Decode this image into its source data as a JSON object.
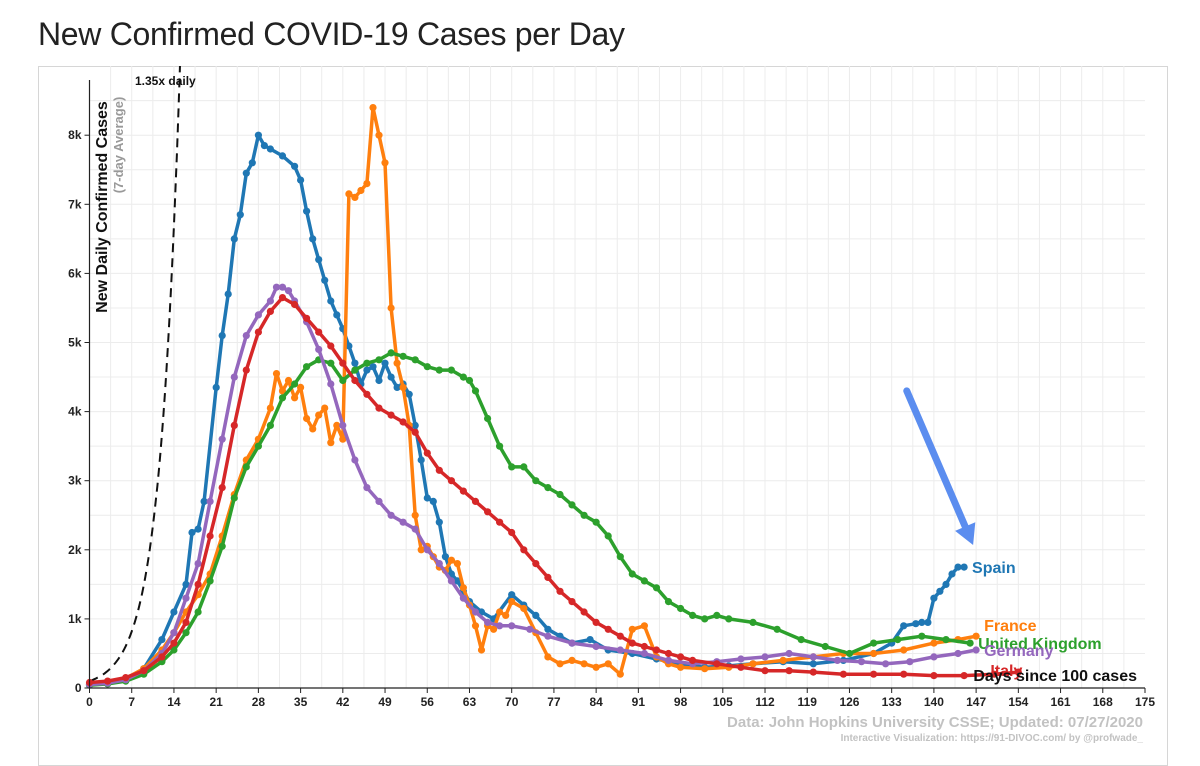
{
  "page": {
    "title": "New Confirmed COVID-19 Cases per Day"
  },
  "chart_data": {
    "type": "line",
    "title": "New Confirmed COVID-19 Cases per Day",
    "ylabel": "New Daily Confirmed Cases",
    "ylabel_sub": "(7-day Average)",
    "xlabel": "Days since 100 cases",
    "xlim": [
      0,
      175
    ],
    "ylim": [
      0,
      8800
    ],
    "x_ticks": [
      0,
      7,
      14,
      21,
      28,
      35,
      42,
      49,
      56,
      63,
      70,
      77,
      84,
      91,
      98,
      105,
      112,
      119,
      126,
      133,
      140,
      147,
      154,
      161,
      168,
      175
    ],
    "y_ticks": [
      0,
      1000,
      2000,
      3000,
      4000,
      5000,
      6000,
      7000,
      8000
    ],
    "y_tick_labels": [
      "0",
      "1k",
      "2k",
      "3k",
      "4k",
      "5k",
      "6k",
      "7k",
      "8k"
    ],
    "grid": true,
    "source_note": "Data: John Hopkins University CSSE; Updated: 07/27/2020",
    "credit_note": "Interactive Visualization: https://91-DIVOC.com/ by @profwade_",
    "reference_line": {
      "label": "1.35x daily",
      "growth": 1.35,
      "start": [
        0,
        100
      ],
      "color": "#111111"
    },
    "annotation_arrow": {
      "from": [
        135.5,
        4300
      ],
      "to": [
        146.5,
        2070
      ],
      "color": "#5b8def"
    },
    "series": [
      {
        "name": "Spain",
        "color": "#1f77b4",
        "x": [
          0,
          3,
          6,
          9,
          12,
          14,
          16,
          17,
          18,
          19,
          21,
          22,
          23,
          24,
          25,
          26,
          27,
          28,
          29,
          30,
          32,
          34,
          35,
          36,
          37,
          38,
          39,
          40,
          41,
          42,
          43,
          44,
          45,
          46,
          47,
          48,
          49,
          50,
          51,
          52,
          53,
          54,
          55,
          56,
          57,
          58,
          59,
          60,
          61,
          62,
          63,
          65,
          67,
          70,
          72,
          74,
          76,
          78,
          80,
          83,
          86,
          90,
          94,
          98,
          102,
          106,
          110,
          115,
          120,
          125,
          130,
          133,
          135,
          137,
          138,
          139,
          140,
          141,
          142,
          143,
          144,
          145
        ],
        "y": [
          50,
          70,
          130,
          280,
          700,
          1100,
          1500,
          2250,
          2300,
          2700,
          4350,
          5100,
          5700,
          6500,
          6850,
          7450,
          7600,
          8000,
          7850,
          7800,
          7700,
          7550,
          7350,
          6900,
          6500,
          6200,
          5900,
          5600,
          5400,
          5200,
          4950,
          4700,
          4400,
          4600,
          4650,
          4450,
          4700,
          4500,
          4350,
          4400,
          4250,
          3800,
          3300,
          2750,
          2700,
          2400,
          1900,
          1650,
          1550,
          1400,
          1250,
          1100,
          1000,
          1350,
          1200,
          1050,
          850,
          750,
          650,
          700,
          550,
          500,
          420,
          350,
          300,
          320,
          350,
          380,
          350,
          400,
          500,
          650,
          900,
          930,
          950,
          950,
          1300,
          1400,
          1500,
          1650,
          1750,
          1750
        ]
      },
      {
        "name": "France",
        "color": "#ff7f0e",
        "x": [
          0,
          3,
          6,
          9,
          12,
          14,
          16,
          18,
          20,
          22,
          24,
          26,
          28,
          30,
          31,
          32,
          33,
          34,
          35,
          36,
          37,
          38,
          39,
          40,
          41,
          42,
          43,
          44,
          45,
          46,
          47,
          48,
          49,
          50,
          51,
          52,
          53,
          54,
          55,
          56,
          57,
          58,
          59,
          60,
          61,
          62,
          63,
          64,
          65,
          66,
          67,
          68,
          69,
          70,
          72,
          74,
          76,
          78,
          80,
          82,
          84,
          86,
          88,
          90,
          92,
          94,
          96,
          98,
          102,
          106,
          110,
          115,
          120,
          125,
          130,
          135,
          140,
          144,
          147
        ],
        "y": [
          60,
          80,
          140,
          280,
          550,
          800,
          1100,
          1350,
          1650,
          2200,
          2800,
          3300,
          3600,
          4050,
          4550,
          4300,
          4450,
          4200,
          4350,
          3900,
          3750,
          3950,
          4050,
          3550,
          3800,
          3600,
          7150,
          7100,
          7200,
          7300,
          8400,
          8000,
          7600,
          5500,
          4700,
          4350,
          3800,
          2500,
          2000,
          2050,
          1900,
          1750,
          1700,
          1850,
          1800,
          1450,
          1200,
          900,
          550,
          900,
          850,
          1100,
          1050,
          1250,
          1150,
          800,
          450,
          350,
          400,
          350,
          300,
          350,
          200,
          850,
          900,
          450,
          350,
          300,
          280,
          300,
          350,
          400,
          450,
          500,
          500,
          550,
          650,
          700,
          750
        ]
      },
      {
        "name": "United Kingdom",
        "color": "#2ca02c",
        "x": [
          0,
          3,
          6,
          9,
          12,
          14,
          16,
          18,
          20,
          22,
          24,
          26,
          28,
          30,
          32,
          34,
          36,
          38,
          40,
          42,
          44,
          46,
          48,
          50,
          52,
          54,
          56,
          58,
          60,
          62,
          63,
          64,
          66,
          68,
          70,
          72,
          74,
          76,
          78,
          80,
          82,
          84,
          86,
          88,
          90,
          92,
          94,
          96,
          98,
          100,
          102,
          104,
          106,
          110,
          114,
          118,
          122,
          126,
          130,
          134,
          138,
          142,
          146
        ],
        "y": [
          40,
          60,
          100,
          200,
          380,
          550,
          800,
          1100,
          1550,
          2050,
          2750,
          3200,
          3500,
          3800,
          4200,
          4400,
          4650,
          4750,
          4700,
          4450,
          4600,
          4700,
          4750,
          4850,
          4800,
          4750,
          4650,
          4600,
          4600,
          4500,
          4450,
          4300,
          3900,
          3500,
          3200,
          3200,
          3000,
          2900,
          2800,
          2650,
          2500,
          2400,
          2200,
          1900,
          1650,
          1550,
          1450,
          1250,
          1150,
          1050,
          1000,
          1050,
          1000,
          950,
          850,
          700,
          600,
          500,
          650,
          700,
          750,
          700,
          650
        ]
      },
      {
        "name": "Germany",
        "color": "#9467bd",
        "x": [
          0,
          3,
          6,
          9,
          12,
          14,
          16,
          18,
          20,
          22,
          24,
          26,
          28,
          30,
          31,
          32,
          33,
          34,
          36,
          38,
          40,
          42,
          44,
          46,
          48,
          50,
          52,
          54,
          56,
          58,
          60,
          62,
          64,
          66,
          68,
          70,
          73,
          76,
          80,
          84,
          88,
          92,
          96,
          100,
          104,
          108,
          112,
          116,
          120,
          124,
          128,
          132,
          136,
          140,
          144,
          147
        ],
        "y": [
          50,
          70,
          120,
          250,
          500,
          800,
          1300,
          1800,
          2700,
          3600,
          4500,
          5100,
          5400,
          5600,
          5800,
          5800,
          5750,
          5600,
          5300,
          4900,
          4400,
          3800,
          3300,
          2900,
          2700,
          2500,
          2400,
          2300,
          2000,
          1800,
          1550,
          1300,
          1100,
          950,
          900,
          900,
          850,
          750,
          650,
          600,
          550,
          500,
          400,
          350,
          380,
          420,
          450,
          500,
          450,
          400,
          380,
          350,
          380,
          450,
          500,
          550
        ]
      },
      {
        "name": "Italy",
        "color": "#d62728",
        "x": [
          0,
          3,
          6,
          9,
          12,
          14,
          16,
          18,
          20,
          22,
          24,
          26,
          28,
          30,
          32,
          34,
          36,
          38,
          40,
          42,
          44,
          46,
          48,
          50,
          52,
          54,
          56,
          58,
          60,
          62,
          64,
          66,
          68,
          70,
          72,
          74,
          76,
          78,
          80,
          82,
          84,
          86,
          88,
          90,
          92,
          94,
          96,
          98,
          100,
          104,
          108,
          112,
          116,
          120,
          125,
          130,
          135,
          140,
          145,
          150,
          154
        ],
        "y": [
          80,
          100,
          150,
          250,
          450,
          650,
          950,
          1500,
          2200,
          2900,
          3800,
          4600,
          5150,
          5450,
          5650,
          5550,
          5350,
          5150,
          4950,
          4700,
          4450,
          4250,
          4050,
          3950,
          3850,
          3700,
          3400,
          3150,
          3000,
          2850,
          2700,
          2550,
          2400,
          2250,
          2000,
          1800,
          1600,
          1400,
          1250,
          1100,
          950,
          850,
          750,
          650,
          600,
          550,
          500,
          450,
          400,
          350,
          300,
          250,
          250,
          230,
          200,
          200,
          200,
          180,
          180,
          200,
          230
        ]
      }
    ]
  }
}
